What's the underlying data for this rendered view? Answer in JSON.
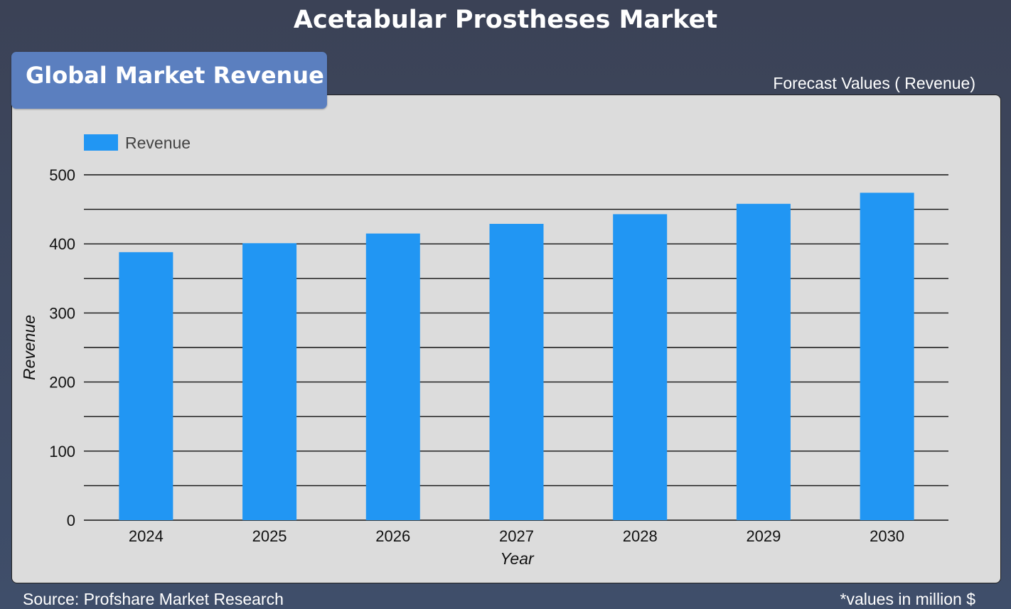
{
  "header": {
    "title": "Acetabular Prostheses Market"
  },
  "panel": {
    "tab_label": "Global Market Revenue",
    "forecast_label": "Forecast Values ( Revenue)"
  },
  "footer": {
    "source": "Source: Profshare Market Research",
    "units_note": "*values in million $"
  },
  "chart_data": {
    "type": "bar",
    "categories": [
      "2024",
      "2025",
      "2026",
      "2027",
      "2028",
      "2029",
      "2030"
    ],
    "series": [
      {
        "name": "Revenue",
        "values": [
          388,
          401,
          415,
          429,
          443,
          458,
          474
        ],
        "color": "#2196f3"
      }
    ],
    "xlabel": "Year",
    "ylabel": "Revenue",
    "ylim": [
      0,
      500
    ],
    "yticks": [
      0,
      100,
      200,
      300,
      400,
      500
    ],
    "grid": true,
    "minor_gridlines": true,
    "legend": "top-left"
  }
}
